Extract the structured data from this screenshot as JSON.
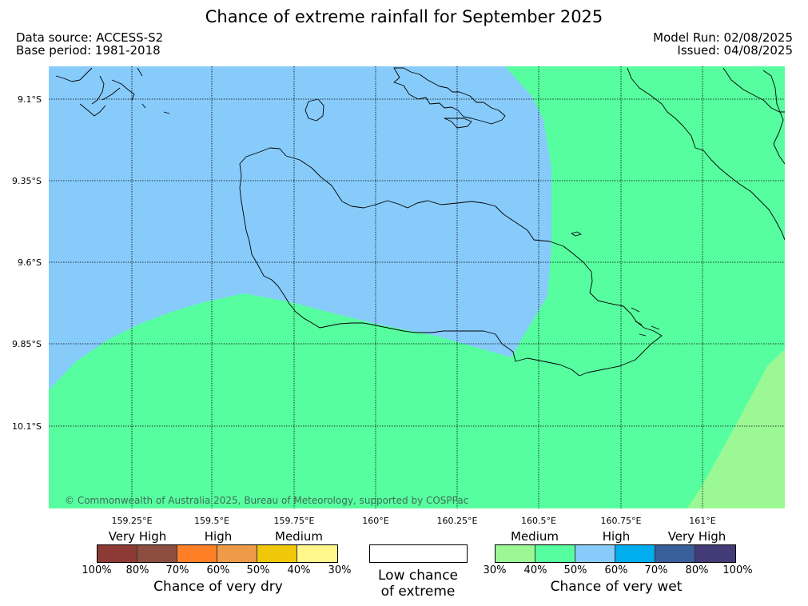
{
  "header": {
    "title": "Chance of extreme rainfall for September 2025",
    "data_source": "Data source: ACCESS-S2",
    "base_period": "Base period: 1981-2018",
    "model_run": "Model Run: 02/08/2025",
    "issued": "Issued: 04/08/2025"
  },
  "map": {
    "lat_labels": [
      "9.1°S",
      "9.35°S",
      "9.6°S",
      "9.85°S",
      "10.1°S"
    ],
    "lon_labels": [
      "159.25°E",
      "159.5°E",
      "159.75°E",
      "160°E",
      "160.25°E",
      "160.5°E",
      "160.75°E",
      "161°E"
    ],
    "copyright": "© Commonwealth of Australia 2025, Bureau of Meteorology, supported by COSPPac",
    "region_colors": {
      "high_wet": "#87cbfb",
      "medium_wet_upper": "#57fe9f",
      "medium_wet_lower": "#9bf895"
    }
  },
  "legend": {
    "dry": {
      "categories": [
        "Very High",
        "High",
        "Medium"
      ],
      "colors": [
        "#8e3a34",
        "#8c4e3e",
        "#ff7f27",
        "#ee9b48",
        "#f0c80a",
        "#fff68c"
      ],
      "ticks": [
        "100%",
        "80%",
        "70%",
        "60%",
        "50%",
        "40%",
        "30%"
      ],
      "title": "Chance of very dry"
    },
    "low": {
      "line1": "Low chance",
      "line2": "of extreme"
    },
    "wet": {
      "categories": [
        "Medium",
        "High",
        "Very High"
      ],
      "colors": [
        "#9bf895",
        "#57fe9f",
        "#87cbfb",
        "#00adee",
        "#395f9a",
        "#433b77"
      ],
      "ticks": [
        "30%",
        "40%",
        "50%",
        "60%",
        "70%",
        "80%",
        "100%"
      ],
      "title": "Chance of very wet"
    }
  }
}
